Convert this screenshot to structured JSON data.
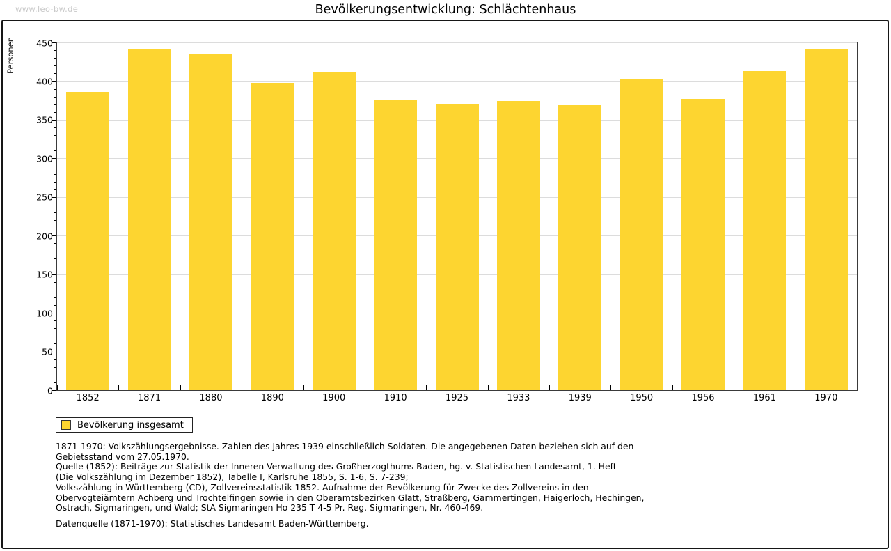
{
  "watermark": "www.leo-bw.de",
  "title": "Bevölkerungsentwicklung: Schlächtenhaus",
  "chart_data": {
    "type": "bar",
    "title": "Bevölkerungsentwicklung: Schlächtenhaus",
    "xlabel": "",
    "ylabel": "Personen",
    "categories": [
      "1852",
      "1871",
      "1880",
      "1890",
      "1900",
      "1910",
      "1925",
      "1933",
      "1939",
      "1950",
      "1956",
      "1961",
      "1970"
    ],
    "values": [
      386,
      441,
      435,
      398,
      412,
      376,
      370,
      374,
      369,
      403,
      377,
      413,
      441
    ],
    "ylim": [
      0,
      450
    ],
    "ytick_step": 50,
    "y_minor_step": 10,
    "grid": true,
    "legend_position": "bottom-left",
    "bar_color": "#fdd530",
    "gridline_color": "#dcdcdc"
  },
  "legend": {
    "label": "Bevölkerung insgesamt",
    "swatch_color": "#fdd530"
  },
  "footer": {
    "lines": [
      "1871-1970: Volkszählungsergebnisse. Zahlen des Jahres 1939 einschließlich Soldaten. Die angegebenen Daten beziehen sich auf den",
      "Gebietsstand vom 27.05.1970.",
      "Quelle (1852): Beiträge zur Statistik der Inneren Verwaltung des Großherzogthums Baden, hg. v. Statistischen Landesamt, 1. Heft",
      "(Die Volkszählung im Dezember 1852), Tabelle I, Karlsruhe 1855, S. 1-6, S. 7-239;",
      "Volkszählung in Württemberg (CD), Zollvereinsstatistik 1852. Aufnahme der Bevölkerung für Zwecke des Zollvereins in den",
      "Obervogteiämtern Achberg und Trochtelfingen sowie in den Oberamtsbezirken Glatt, Straßberg, Gammertingen, Haigerloch, Hechingen,",
      "Ostrach, Sigmaringen, und Wald; StA Sigmaringen Ho 235 T 4-5 Pr. Reg. Sigmaringen, Nr. 460-469."
    ],
    "source_line": "Datenquelle (1871-1970): Statistisches Landesamt Baden-Württemberg."
  }
}
